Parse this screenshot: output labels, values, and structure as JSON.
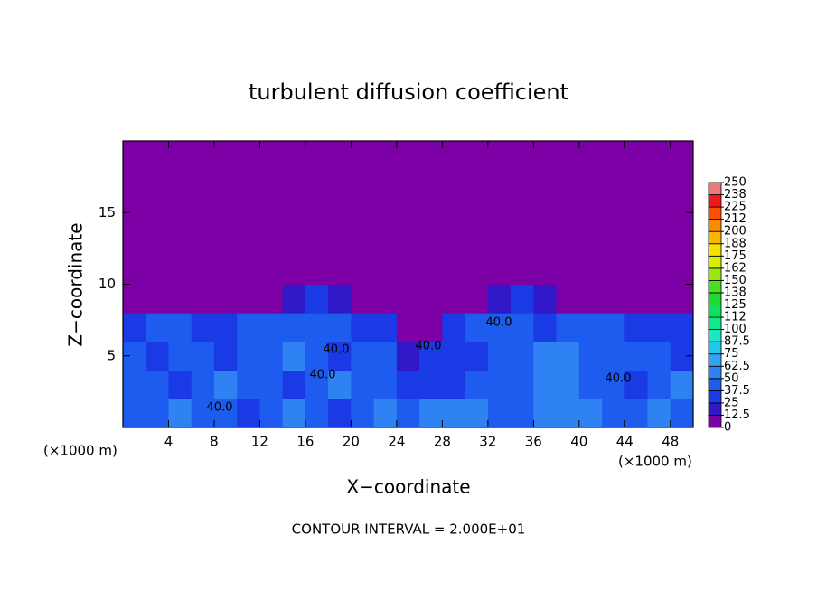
{
  "chart_data": {
    "type": "heatmap",
    "title": "turbulent diffusion coefficient",
    "x_label": "X−coordinate",
    "y_label": "Z−coordinate",
    "x_unit": "(×1000 m)",
    "y_unit": "(×1000 m)",
    "footnote": "CONTOUR INTERVAL = 2.000E+01",
    "contour_labels": [
      "40.0",
      "40.0",
      "40.0",
      "40.0",
      "40.0",
      "40.0"
    ],
    "xlim": [
      0,
      50
    ],
    "ylim": [
      0,
      20
    ],
    "xticks": [
      4,
      8,
      12,
      16,
      20,
      24,
      28,
      32,
      36,
      40,
      44,
      48
    ],
    "yticks": [
      5,
      10,
      15
    ],
    "x": [
      1,
      3,
      5,
      7,
      9,
      11,
      13,
      15,
      17,
      19,
      21,
      23,
      25,
      27,
      29,
      31,
      33,
      35,
      37,
      39,
      41,
      43,
      45,
      47,
      49
    ],
    "y": [
      1,
      3,
      5,
      7,
      9,
      11,
      13,
      15,
      17,
      19
    ],
    "z": [
      [
        45,
        40,
        50,
        45,
        40,
        35,
        45,
        50,
        40,
        35,
        45,
        50,
        40,
        55,
        60,
        50,
        40,
        45,
        50,
        55,
        60,
        45,
        40,
        50,
        45
      ],
      [
        40,
        45,
        35,
        40,
        50,
        45,
        40,
        35,
        45,
        50,
        40,
        45,
        30,
        25,
        35,
        40,
        45,
        40,
        55,
        50,
        45,
        40,
        35,
        45,
        50
      ],
      [
        45,
        35,
        40,
        45,
        35,
        40,
        45,
        50,
        40,
        35,
        45,
        40,
        20,
        25,
        30,
        35,
        40,
        45,
        50,
        55,
        45,
        40,
        45,
        40,
        35
      ],
      [
        35,
        40,
        45,
        30,
        35,
        40,
        45,
        40,
        45,
        40,
        35,
        30,
        5,
        10,
        25,
        40,
        45,
        40,
        35,
        40,
        45,
        40,
        35,
        30,
        25
      ],
      [
        0,
        0,
        0,
        0,
        0,
        0,
        0,
        20,
        25,
        20,
        0,
        0,
        0,
        0,
        0,
        0,
        20,
        25,
        20,
        0,
        0,
        0,
        0,
        0,
        0
      ],
      [
        0,
        0,
        0,
        0,
        0,
        0,
        0,
        0,
        0,
        0,
        0,
        0,
        0,
        0,
        0,
        0,
        0,
        0,
        0,
        0,
        0,
        0,
        0,
        0,
        0
      ],
      [
        0,
        0,
        0,
        0,
        0,
        0,
        0,
        0,
        0,
        0,
        0,
        0,
        0,
        0,
        0,
        0,
        0,
        0,
        0,
        0,
        0,
        0,
        0,
        0,
        0
      ],
      [
        0,
        0,
        0,
        0,
        0,
        0,
        0,
        0,
        0,
        0,
        0,
        0,
        0,
        0,
        0,
        0,
        0,
        0,
        0,
        0,
        0,
        0,
        0,
        0,
        0
      ],
      [
        0,
        0,
        0,
        0,
        0,
        0,
        0,
        0,
        0,
        0,
        0,
        0,
        0,
        0,
        0,
        0,
        0,
        0,
        0,
        0,
        0,
        0,
        0,
        0,
        0
      ],
      [
        0,
        0,
        0,
        0,
        0,
        0,
        0,
        0,
        0,
        0,
        0,
        0,
        0,
        0,
        0,
        0,
        0,
        0,
        0,
        0,
        0,
        0,
        0,
        0,
        0
      ]
    ],
    "colorbar": {
      "levels": [
        0,
        12.5,
        25,
        37.5,
        50,
        62.5,
        75,
        87.5,
        100,
        {
          "value": 112.5,
          "label": "112"
        },
        125,
        {
          "value": 137.5,
          "label": "138"
        },
        150,
        {
          "value": 162.5,
          "label": "162"
        },
        175,
        {
          "value": 187.5,
          "label": "188"
        },
        200,
        {
          "value": 212.5,
          "label": "212"
        },
        225,
        {
          "value": 237.5,
          "label": "238"
        },
        250
      ],
      "colors": [
        "#7d00a6",
        "#3018c8",
        "#1a3ae6",
        "#1e5cf0",
        "#2f82f2",
        "#38a2f2",
        "#20c8ea",
        "#1ee6c4",
        "#10e890",
        "#10e060",
        "#20d830",
        "#48e020",
        "#98e810",
        "#d8f000",
        "#f8e000",
        "#f8b800",
        "#f88c00",
        "#f85000",
        "#f01818",
        "#f07878"
      ]
    }
  }
}
